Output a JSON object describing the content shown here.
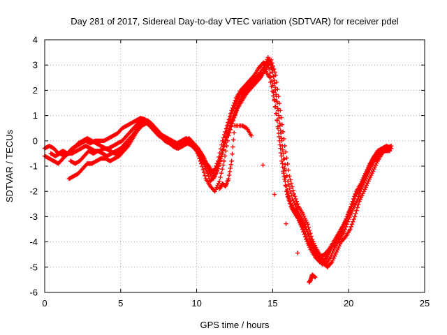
{
  "chart_data": {
    "type": "scatter",
    "title": "Day 281 of 2017, Sidereal Day-to-day VTEC variation (SDTVAR) for receiver pdel",
    "xlabel": "GPS time / hours",
    "ylabel": "SDTVAR / TECUs",
    "xlim": [
      0,
      25
    ],
    "ylim": [
      -6,
      4
    ],
    "xticks": [
      0,
      5,
      10,
      15,
      20,
      25
    ],
    "yticks": [
      -6,
      -5,
      -4,
      -3,
      -2,
      -1,
      0,
      1,
      2,
      3,
      4
    ],
    "grid": true,
    "marker": "plus",
    "color": "#ff0000",
    "series": [
      {
        "x": [
          0.0,
          0.3,
          0.6,
          0.9,
          1.2,
          1.5,
          1.8,
          2.1,
          2.4,
          2.7,
          3.0,
          3.3,
          3.6,
          3.9,
          4.2,
          4.5,
          4.8,
          5.1,
          5.4,
          5.7,
          6.0,
          6.3,
          6.6,
          6.9,
          7.2,
          7.5,
          7.8,
          8.1,
          8.4,
          8.7,
          9.0,
          9.3,
          9.6,
          9.9,
          10.2,
          10.5,
          10.8,
          11.1,
          11.4,
          11.7,
          12.0,
          12.3,
          12.6,
          12.9,
          13.2,
          13.5,
          13.8,
          14.1,
          14.4,
          14.7,
          15.0,
          15.3,
          15.6,
          15.9,
          16.2,
          16.5,
          16.8,
          17.1,
          17.4,
          17.7,
          18.0,
          18.3,
          18.6,
          18.9,
          19.2,
          19.5,
          19.8,
          20.1,
          20.4,
          20.7,
          21.0,
          21.3,
          21.6,
          21.9,
          22.2,
          22.5,
          22.8
        ],
        "y": [
          -0.6,
          -0.7,
          -0.8,
          -0.9,
          -0.7,
          -0.5,
          -0.3,
          -0.2,
          -0.1,
          0.0,
          -0.1,
          0.0,
          0.0,
          0.0,
          0.1,
          0.2,
          0.3,
          0.5,
          0.6,
          0.7,
          0.8,
          0.9,
          0.85,
          0.7,
          0.5,
          0.3,
          0.2,
          0.1,
          0.0,
          -0.1,
          0.0,
          0.1,
          0.0,
          -0.2,
          -0.4,
          -0.7,
          -1.2,
          -1.5,
          -1.1,
          -0.4,
          0.5,
          1.1,
          1.5,
          1.9,
          2.1,
          2.2,
          2.4,
          2.6,
          2.9,
          3.3,
          2.8,
          1.5,
          0.0,
          -1.8,
          -2.5,
          -2.8,
          -3.0,
          -3.3,
          -3.8,
          -4.2,
          -4.5,
          -4.8,
          -5.0,
          -4.8,
          -4.4,
          -4.0,
          -3.8,
          -3.5,
          -3.0,
          -2.4,
          -2.0,
          -1.6,
          -1.2,
          -0.8,
          -0.5,
          -0.3,
          -0.2
        ]
      },
      {
        "x": [
          0.0,
          0.3,
          0.6,
          0.9,
          1.2,
          1.5,
          1.8,
          2.1,
          2.4,
          2.7,
          3.0,
          3.3,
          3.6,
          3.9,
          4.2,
          4.5,
          4.8,
          5.1,
          5.4,
          5.7,
          6.0,
          6.3,
          6.6,
          6.9,
          7.2,
          7.5,
          7.8,
          8.1,
          8.4,
          8.7,
          9.0,
          9.3,
          9.6,
          9.9,
          10.2,
          10.5,
          10.8,
          11.1,
          11.4,
          11.7,
          12.0,
          12.3,
          12.6,
          12.9,
          13.2,
          13.5,
          13.8,
          14.1,
          14.4,
          14.7,
          15.0,
          15.3,
          15.6,
          15.9,
          16.2,
          16.5,
          16.8,
          17.1,
          17.4,
          17.7,
          18.0,
          18.3,
          18.6,
          18.9,
          19.2,
          19.5,
          19.8,
          20.1,
          20.4,
          20.7,
          21.0,
          21.3,
          21.6,
          21.9,
          22.2,
          22.5,
          22.8
        ],
        "y": [
          -0.3,
          -0.2,
          -0.3,
          -0.5,
          -0.4,
          -0.5,
          -0.5,
          -0.4,
          -0.3,
          -0.2,
          -0.3,
          -0.4,
          -0.4,
          -0.3,
          -0.3,
          -0.2,
          -0.1,
          0.0,
          0.2,
          0.4,
          0.6,
          0.8,
          0.75,
          0.6,
          0.4,
          0.2,
          0.1,
          0.0,
          -0.2,
          -0.3,
          -0.1,
          0.0,
          -0.1,
          -0.3,
          -0.5,
          -0.8,
          -1.0,
          -1.3,
          -0.8,
          0.0,
          0.6,
          1.2,
          1.7,
          2.0,
          2.2,
          2.4,
          2.6,
          2.9,
          3.1,
          3.0,
          2.2,
          0.8,
          -0.8,
          -2.0,
          -2.6,
          -2.9,
          -3.2,
          -3.6,
          -4.1,
          -4.4,
          -4.7,
          -4.9,
          -4.6,
          -4.2,
          -3.9,
          -3.5,
          -3.2,
          -2.7,
          -2.2,
          -1.9,
          -1.5,
          -1.1,
          -0.7,
          -0.4,
          -0.3,
          -0.2,
          -0.3
        ]
      },
      {
        "x": [
          1.6,
          1.9,
          2.2,
          2.5,
          2.8,
          3.1,
          3.4,
          3.7,
          4.0,
          4.3,
          4.6,
          4.9,
          5.2,
          5.5,
          5.8,
          6.1,
          6.4,
          6.7,
          7.0,
          7.3,
          7.6,
          7.9,
          8.2,
          8.5,
          8.8,
          9.1,
          9.4,
          9.7,
          10.0,
          10.3,
          10.6,
          10.9,
          11.2,
          11.5,
          11.8,
          12.1,
          12.4,
          12.7,
          13.0,
          13.3,
          13.6,
          13.9,
          14.2,
          14.5,
          14.8,
          15.1,
          15.4,
          15.7,
          16.0,
          16.3,
          16.6,
          16.9,
          17.2,
          17.5,
          17.8,
          18.1,
          18.4,
          18.7,
          19.0,
          19.3,
          19.6,
          19.9,
          20.2,
          20.5,
          20.8,
          21.1,
          21.4,
          21.7,
          22.0,
          22.3,
          22.6
        ],
        "y": [
          -1.5,
          -1.4,
          -1.3,
          -1.1,
          -0.9,
          -0.9,
          -0.8,
          -0.7,
          -0.7,
          -0.8,
          -0.7,
          -0.6,
          -0.4,
          -0.2,
          0.1,
          0.4,
          0.6,
          0.7,
          0.6,
          0.4,
          0.2,
          0.0,
          -0.1,
          -0.2,
          -0.3,
          -0.2,
          -0.1,
          -0.2,
          -0.4,
          -0.9,
          -1.5,
          -1.8,
          -2.0,
          -1.6,
          -0.8,
          0.2,
          0.8,
          1.4,
          1.8,
          2.0,
          2.3,
          2.5,
          2.7,
          2.8,
          2.5,
          1.6,
          0.3,
          -1.2,
          -2.2,
          -2.7,
          -3.0,
          -3.4,
          -3.9,
          -4.3,
          -4.6,
          -4.8,
          -4.7,
          -4.4,
          -4.1,
          -3.8,
          -3.5,
          -3.0,
          -2.5,
          -2.0,
          -1.7,
          -1.3,
          -0.9,
          -0.6,
          -0.5,
          -0.4,
          -0.4
        ]
      },
      {
        "x": [
          0.4,
          0.7,
          1.0,
          1.3,
          1.6,
          1.9,
          2.2,
          2.5,
          2.8,
          3.1,
          3.4,
          3.7,
          4.0,
          4.3,
          4.6,
          4.9,
          5.2,
          5.5,
          5.8,
          6.1,
          6.4,
          6.7,
          7.0,
          7.3,
          7.6,
          7.9,
          8.2,
          8.5,
          8.8,
          9.1,
          9.4,
          9.7,
          10.0,
          10.3,
          10.6,
          10.9,
          11.2,
          11.5,
          11.8,
          12.1,
          12.4,
          12.7,
          13.0,
          13.3,
          13.6,
          13.9,
          14.2,
          14.5,
          14.8,
          15.1,
          15.4,
          15.7,
          16.0,
          16.3,
          16.6,
          16.9,
          17.2,
          17.5,
          17.8,
          18.1,
          18.4,
          18.7,
          19.0,
          19.3,
          19.6,
          19.9,
          20.2,
          20.5,
          20.8,
          21.1,
          21.4,
          21.7,
          22.0,
          22.3,
          22.6
        ],
        "y": [
          -0.5,
          -0.6,
          -0.5,
          -0.6,
          -0.5,
          -0.3,
          -0.1,
          0.0,
          0.1,
          0.0,
          -0.1,
          -0.2,
          -0.3,
          -0.4,
          -0.5,
          -0.5,
          -0.3,
          -0.1,
          0.2,
          0.5,
          0.7,
          0.8,
          0.7,
          0.5,
          0.3,
          0.1,
          0.0,
          -0.1,
          -0.2,
          -0.1,
          0.0,
          -0.2,
          -0.4,
          -0.7,
          -1.1,
          -1.6,
          -1.4,
          -0.9,
          -0.2,
          0.4,
          0.9,
          1.3,
          1.6,
          1.9,
          2.1,
          2.3,
          2.5,
          3.0,
          3.2,
          2.4,
          1.0,
          -0.5,
          -1.6,
          -2.3,
          -2.7,
          -3.1,
          -3.5,
          -4.0,
          -4.4,
          -4.6,
          -4.5,
          -4.3,
          -4.0,
          -3.7,
          -3.4,
          -3.0,
          -2.6,
          -2.1,
          -1.8,
          -1.4,
          -1.0,
          -0.6,
          -0.4,
          -0.3,
          -0.3
        ]
      },
      {
        "x": [
          1.7,
          2.0,
          2.3,
          2.6,
          2.9,
          3.2,
          3.5,
          3.8,
          4.1,
          4.4,
          4.7,
          5.0,
          5.3,
          5.6,
          5.9,
          6.2,
          6.5,
          6.8,
          7.1,
          7.4,
          7.7,
          8.0,
          8.3,
          8.6,
          8.9,
          9.2,
          9.5,
          9.8,
          10.1,
          10.4,
          10.7,
          11.0,
          11.3,
          11.6,
          11.9,
          12.2,
          12.5,
          12.8,
          13.1,
          13.4,
          13.7,
          14.0,
          14.3,
          14.6,
          14.9,
          15.2,
          15.5,
          15.8,
          16.1,
          16.4,
          16.7,
          17.0,
          17.3,
          17.6,
          17.9,
          18.2,
          18.5,
          18.8,
          19.1,
          19.4,
          19.7,
          20.0,
          20.3,
          20.6,
          20.9,
          21.2,
          21.5,
          21.8,
          22.1,
          22.4,
          22.7
        ],
        "y": [
          -0.8,
          -0.9,
          -0.8,
          -0.6,
          -0.4,
          -0.5,
          -0.4,
          -0.5,
          -0.6,
          -0.5,
          -0.4,
          -0.3,
          -0.1,
          0.1,
          0.3,
          0.5,
          0.8,
          0.8,
          0.6,
          0.4,
          0.2,
          0.1,
          0.0,
          -0.1,
          -0.1,
          0.0,
          0.1,
          -0.1,
          -0.3,
          -0.6,
          -1.0,
          -1.2,
          -1.1,
          -0.6,
          0.0,
          0.6,
          1.0,
          1.5,
          1.8,
          2.0,
          2.2,
          2.4,
          2.6,
          2.9,
          3.2,
          2.6,
          1.2,
          -0.2,
          -1.4,
          -2.1,
          -2.6,
          -2.9,
          -3.3,
          -3.9,
          -4.3,
          -4.6,
          -4.9,
          -4.6,
          -4.2,
          -3.9,
          -3.6,
          -3.1,
          -2.7,
          -2.3,
          -1.8,
          -1.4,
          -1.0,
          -0.7,
          -0.5,
          -0.3,
          -0.4
        ]
      },
      {
        "x": [
          11.5,
          11.7,
          11.9,
          12.1,
          12.3,
          12.5,
          13.0,
          13.3,
          13.6,
          17.4,
          17.5,
          17.6,
          17.8
        ],
        "y": [
          -1.9,
          -1.7,
          -1.8,
          -1.5,
          -0.8,
          0.6,
          0.6,
          0.5,
          0.2,
          -5.6,
          -5.5,
          -5.3,
          -5.4
        ]
      }
    ]
  }
}
